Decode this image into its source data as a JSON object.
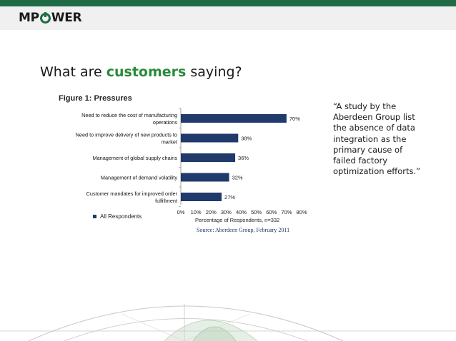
{
  "header": {
    "logo_text": "MPOWER"
  },
  "slide": {
    "headline_pre": "What are ",
    "headline_accent": "customers",
    "headline_post": " saying?",
    "quote": "“A study by the Aberdeen Group list the absence of data integration as the primary cause of failed factory optimization efforts.”"
  },
  "figure": {
    "title": "Figure 1: Pressures",
    "source": "Source: Aberdeen Group, February 2011"
  },
  "chart_data": {
    "type": "bar",
    "orientation": "horizontal",
    "title": "Figure 1: Pressures",
    "categories": [
      [
        "Need to reduce the cost of manufacturing",
        "operations"
      ],
      [
        "Need to improve delivery of new products to",
        "market"
      ],
      [
        "Management of global supply chains"
      ],
      [
        "Management of demand volatility"
      ],
      [
        "Customer mandates for improved order",
        "fulfillment"
      ]
    ],
    "series": [
      {
        "name": "All Respondents",
        "values": [
          70,
          38,
          36,
          32,
          27
        ]
      }
    ],
    "value_labels": [
      "70%",
      "38%",
      "36%",
      "32%",
      "27%"
    ],
    "xlabel": "Percentage of Respondents, n=332",
    "xlim": [
      0,
      80
    ],
    "xticks": [
      "0%",
      "10%",
      "20%",
      "30%",
      "40%",
      "50%",
      "60%",
      "70%",
      "80%"
    ],
    "legend_position": "bottom-left",
    "grid": false,
    "colors": {
      "bar": "#1f3a6b"
    }
  },
  "colors": {
    "topbar": "#1f6b45",
    "accent": "#2a8a3a"
  }
}
